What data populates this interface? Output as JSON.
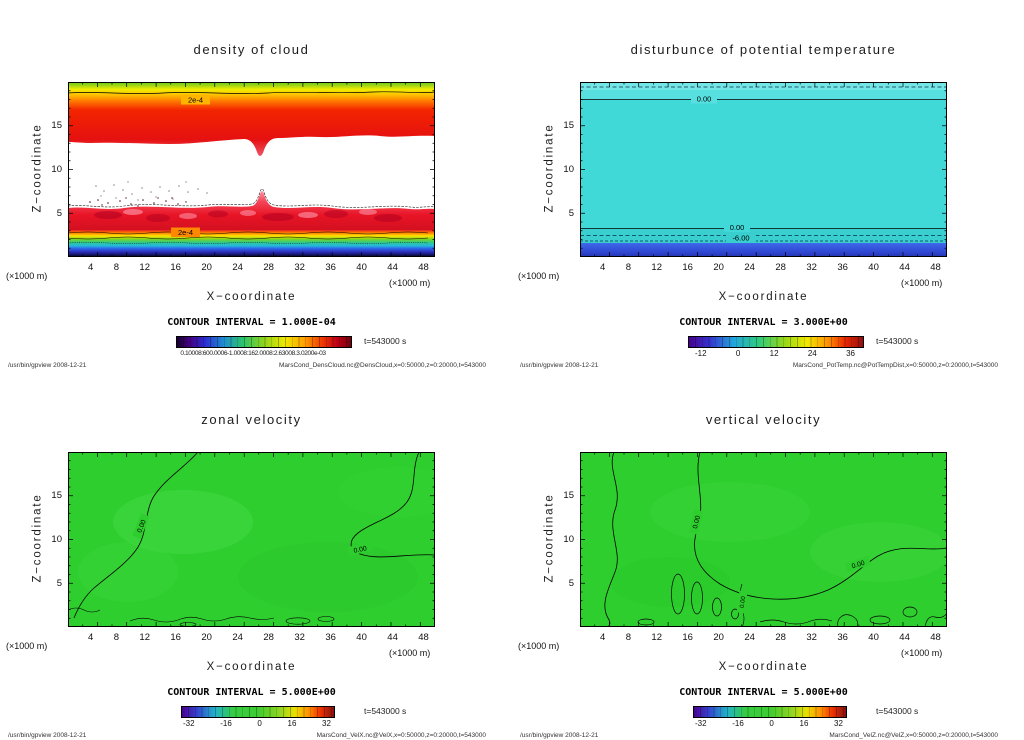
{
  "panels": [
    {
      "id": "density-of-cloud",
      "title": "density of cloud",
      "ylabel": "Z−coordinate",
      "xlabel": "X−coordinate",
      "y_unit": "(×1000 m)",
      "x_unit": "(×1000 m)",
      "yticks": [
        "15",
        "10",
        "5"
      ],
      "xticks": [
        "4",
        "8",
        "12",
        "16",
        "20",
        "24",
        "28",
        "32",
        "36",
        "40",
        "44",
        "48"
      ],
      "contour_labels": [
        "2e-4",
        "2e-4"
      ],
      "contour_interval_label": "CONTOUR INTERVAL = 1.000E-04",
      "colorbar_overlap": "0.10008:600.0006-1.0008:162.0008:2.63008.3.0200e-03",
      "time_label": "t=543000 s",
      "footer_left": "/usr/bin/gpview  2008-12-21",
      "footer_right": "MarsCond_DensCloud.nc@DensCloud,x=0:50000,z=0:20000,t=543000"
    },
    {
      "id": "potential-temperature",
      "title": "disturbunce of potential temperature",
      "ylabel": "Z−coordinate",
      "xlabel": "X−coordinate",
      "y_unit": "(×1000 m)",
      "x_unit": "(×1000 m)",
      "yticks": [
        "15",
        "10",
        "5"
      ],
      "xticks": [
        "4",
        "8",
        "12",
        "16",
        "20",
        "24",
        "28",
        "32",
        "36",
        "40",
        "44",
        "48"
      ],
      "contour_labels": [
        "0.00",
        "0.00",
        "-6.00"
      ],
      "contour_interval_label": "CONTOUR INTERVAL = 3.000E+00",
      "colorbar_labels": [
        "-12",
        "0",
        "12",
        "24",
        "36"
      ],
      "time_label": "t=543000 s",
      "footer_left": "/usr/bin/gpview  2008-12-21",
      "footer_right": "MarsCond_PotTemp.nc@PotTempDist,x=0:50000,z=0:20000,t=543000"
    },
    {
      "id": "zonal-velocity",
      "title": "zonal velocity",
      "ylabel": "Z−coordinate",
      "xlabel": "X−coordinate",
      "y_unit": "(×1000 m)",
      "x_unit": "(×1000 m)",
      "yticks": [
        "15",
        "10",
        "5"
      ],
      "xticks": [
        "4",
        "8",
        "12",
        "16",
        "20",
        "24",
        "28",
        "32",
        "36",
        "40",
        "44",
        "48"
      ],
      "contour_labels": [
        "0.00",
        "0.00"
      ],
      "contour_interval_label": "CONTOUR INTERVAL = 5.000E+00",
      "colorbar_labels": [
        "-32",
        "-16",
        "0",
        "16",
        "32"
      ],
      "time_label": "t=543000 s",
      "footer_left": "/usr/bin/gpview  2008-12-21",
      "footer_right": "MarsCond_VelX.nc@VelX,x=0:50000,z=0:20000,t=543000"
    },
    {
      "id": "vertical-velocity",
      "title": "vertical velocity",
      "ylabel": "Z−coordinate",
      "xlabel": "X−coordinate",
      "y_unit": "(×1000 m)",
      "x_unit": "(×1000 m)",
      "yticks": [
        "15",
        "10",
        "5"
      ],
      "xticks": [
        "4",
        "8",
        "12",
        "16",
        "20",
        "24",
        "28",
        "32",
        "36",
        "40",
        "44",
        "48"
      ],
      "contour_labels": [
        "0.00",
        "0.00",
        "0.00"
      ],
      "contour_interval_label": "CONTOUR INTERVAL = 5.000E+00",
      "colorbar_labels": [
        "-32",
        "-16",
        "0",
        "16",
        "32"
      ],
      "time_label": "t=543000 s",
      "footer_left": "/usr/bin/gpview  2008-12-21",
      "footer_right": "MarsCond_VelZ.nc@VelZ,x=0:50000,z=0:20000,t=543000"
    }
  ],
  "chart_data": [
    {
      "type": "heatmap",
      "title": "density of cloud",
      "xlabel": "X-coordinate (×1000 m)",
      "ylabel": "Z-coordinate (×1000 m)",
      "xlim": [
        0,
        50
      ],
      "ylim": [
        0,
        20
      ],
      "xticks": [
        4,
        8,
        12,
        16,
        20,
        24,
        28,
        32,
        36,
        40,
        44,
        48
      ],
      "yticks": [
        5,
        10,
        15
      ],
      "contour_interval": 0.0001,
      "contour_line_value": "2e-4",
      "colorbar_range_max_label": "3.0200e-03",
      "colorbar_colors": "black→purple→blue→cyan→green→yellow→orange→red→dark red",
      "time_seconds": 543000,
      "features": [
        {
          "region": "upper cloud deck",
          "z_range": [
            13.5,
            20
          ],
          "x_range": [
            0,
            50
          ],
          "value": "≈2e-4 at upper rim (green/yellow) increasing to ≈1e-3–3e-3 in red core; lower edge dips to z≈11 near x≈26"
        },
        {
          "region": "clear gap",
          "z_range": [
            6,
            13.5
          ],
          "value": "< 1e-4 (white) with sparse speckle noise near z≈7–8, x≈4–20"
        },
        {
          "region": "lower cloud band",
          "z_range": [
            3.3,
            5.7
          ],
          "value": "≈1e-3 (red, blotchy); narrow plume spike reaches z≈8 near x≈26"
        },
        {
          "region": "near-surface stratified layers",
          "z_range": [
            0,
            3.3
          ],
          "value": "density falls toward surface through orange→yellow→green→cyan→blue→dark blue→black layers"
        }
      ]
    },
    {
      "type": "heatmap",
      "title": "disturbunce of potential temperature",
      "xlabel": "X-coordinate (×1000 m)",
      "ylabel": "Z-coordinate (×1000 m)",
      "xlim": [
        0,
        50
      ],
      "ylim": [
        0,
        20
      ],
      "xticks": [
        4,
        8,
        12,
        16,
        20,
        24,
        28,
        32,
        36,
        40,
        44,
        48
      ],
      "yticks": [
        5,
        10,
        15
      ],
      "contour_interval": 3.0,
      "colorbar_ticks": [
        -12,
        0,
        12,
        24,
        36
      ],
      "colorbar_colors": "purple→blue→cyan→green→yellow→orange→red",
      "time_seconds": 543000,
      "features": [
        {
          "region": "interior",
          "z_range": [
            3.5,
            17.5
          ],
          "value": "≈0.00 (uniform cyan)"
        },
        {
          "region": "upper boundary",
          "z": 17.5,
          "value": "0.00 solid contour; dashed contour near z≈19.5"
        },
        {
          "region": "lower transition",
          "z": 3.3,
          "value": "0.00 solid contour"
        },
        {
          "region": "dashed contour",
          "z": 2.4,
          "value": -6.0
        },
        {
          "region": "surface layer",
          "z_range": [
            0,
            1.6
          ],
          "value": "strongly negative disturbance ≤ -12 (deep blue band)"
        }
      ]
    },
    {
      "type": "heatmap",
      "title": "zonal velocity",
      "xlabel": "X-coordinate (×1000 m)",
      "ylabel": "Z-coordinate (×1000 m)",
      "xlim": [
        0,
        50
      ],
      "ylim": [
        0,
        20
      ],
      "xticks": [
        4,
        8,
        12,
        16,
        20,
        24,
        28,
        32,
        36,
        40,
        44,
        48
      ],
      "yticks": [
        5,
        10,
        15
      ],
      "contour_interval": 5.0,
      "colorbar_ticks": [
        -32,
        -16,
        0,
        16,
        32
      ],
      "colorbar_colors": "purple→blue→cyan→green→yellow→orange→red",
      "time_seconds": 543000,
      "features": [
        {
          "region": "whole domain",
          "value": "≈0 m/s (uniform green); |u| < 5 nearly everywhere"
        },
        {
          "region": "zero contours",
          "value": "0.00 line meandering from top edge near x≈17 down to lower-left; looping 0.00 line over x≈38–50, z≈8–12; small closed 0.00 cells along the bottom (z≲1.5, x≈8–36)"
        }
      ]
    },
    {
      "type": "heatmap",
      "title": "vertical velocity",
      "xlabel": "X-coordinate (×1000 m)",
      "ylabel": "Z-coordinate (×1000 m)",
      "xlim": [
        0,
        50
      ],
      "ylim": [
        0,
        20
      ],
      "xticks": [
        4,
        8,
        12,
        16,
        20,
        24,
        28,
        32,
        36,
        40,
        44,
        48
      ],
      "yticks": [
        5,
        10,
        15
      ],
      "contour_interval": 5.0,
      "colorbar_ticks": [
        -32,
        -16,
        0,
        16,
        32
      ],
      "colorbar_colors": "purple→blue→cyan→green→yellow→orange→red",
      "time_seconds": 543000,
      "features": [
        {
          "region": "whole domain",
          "value": "≈0 m/s (uniform green); |w| < 5 nearly everywhere"
        },
        {
          "region": "zero contours",
          "value": "vertical 0.00 meander near x≈4–6 from top to bottom; long 0.00 line from top near x≈16 sweeping down and right to exit right edge near z≈9; closed 0.00 cells x≈11–21, z≈1–7; wiggly 0.00 segments along bottom and lower-right corner"
        }
      ]
    }
  ]
}
